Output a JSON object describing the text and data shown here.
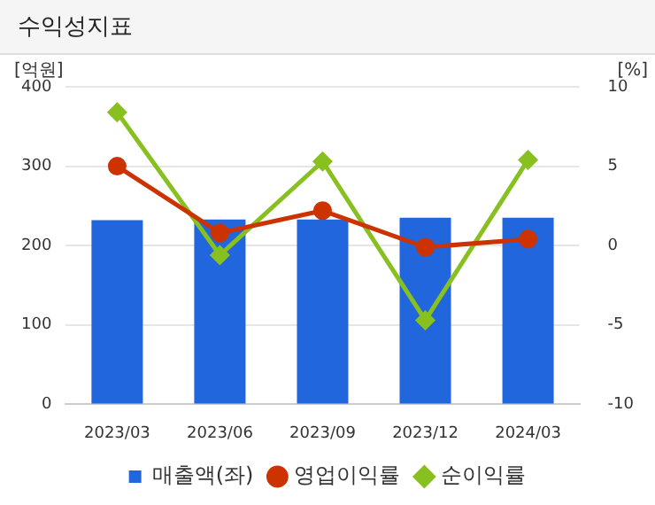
{
  "chart_data": {
    "type": "bar",
    "title": "수익성지표",
    "ylabel": "[억원]",
    "y2label": "[%]",
    "categories": [
      "2023/03",
      "2023/06",
      "2023/09",
      "2023/12",
      "2024/03"
    ],
    "series": [
      {
        "name": "매출액(좌)",
        "color": "#2266dd",
        "values": [
          232,
          233,
          233,
          235,
          235
        ]
      },
      {
        "name": "영업이익률",
        "type": "line",
        "axis": "y2",
        "color": "#cc3300",
        "marker": "circle",
        "values": [
          5.0,
          0.8,
          2.2,
          -0.1,
          0.4
        ]
      },
      {
        "name": "순이익률",
        "type": "line",
        "axis": "y2",
        "color": "#88c020",
        "marker": "diamond",
        "values": [
          8.4,
          -0.6,
          5.3,
          -4.7,
          5.4
        ]
      }
    ],
    "ylim": [
      0,
      400
    ],
    "yticks": [
      0,
      100,
      200,
      300,
      400
    ],
    "y2lim": [
      -10,
      10
    ],
    "y2ticks": [
      -10,
      -5,
      0,
      5,
      10
    ],
    "grid": "y",
    "legend": "bottom"
  }
}
